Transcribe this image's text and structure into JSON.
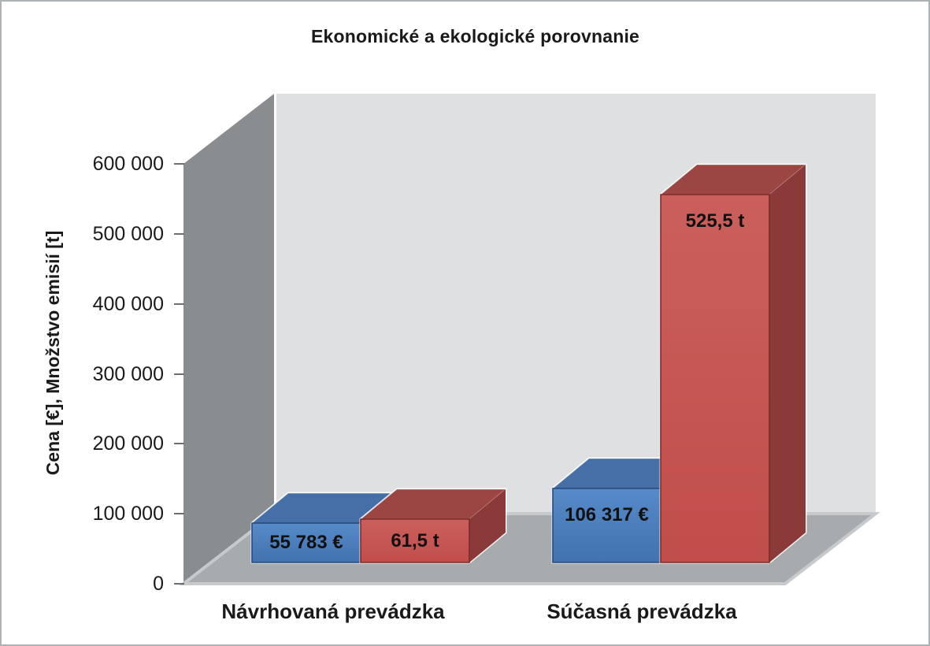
{
  "chart_data": {
    "type": "bar",
    "projection": "3d",
    "title": "Ekonomické a ekologické porovnanie",
    "ylabel": "Cena [€], Množstvo emisií [t]",
    "xlabel": "",
    "ylim": [
      0,
      600000
    ],
    "ytick_step": 100000,
    "ytick_labels": [
      "600 000",
      "500 000",
      "400 000",
      "300 000",
      "200 000",
      "100 000",
      "0"
    ],
    "categories": [
      "Návrhovaná prevádzka",
      "Súčasná prevádzka"
    ],
    "grid": false,
    "legend": false,
    "bars": [
      {
        "category_index": 0,
        "series": "blue",
        "label": "55 783 €",
        "plotted_value": 55783
      },
      {
        "category_index": 0,
        "series": "red",
        "label": "61,5 t",
        "plotted_value": 61500
      },
      {
        "category_index": 1,
        "series": "blue",
        "label": "106 317 €",
        "plotted_value": 106317
      },
      {
        "category_index": 1,
        "series": "red",
        "label": "525,5 t",
        "plotted_value": 525500
      }
    ],
    "colors": {
      "background": "#ffffff",
      "frame_border": "#adb2b4",
      "text": "#1a1a1a",
      "tick_mark": "#6a6e72",
      "wall_left": "#898d90",
      "wall_back": "#dfe0e2",
      "floor": "#a8abae",
      "floor_edge": "#c7cacc",
      "halo": "#ffffff",
      "blue_front_light": "#568ac8",
      "blue_front_dark": "#4272b0",
      "blue_top": "#456fa6",
      "blue_side": "#3a5f92",
      "blue_border": "#27497e",
      "red_front_light": "#cb5f5c",
      "red_front_dark": "#c04e4b",
      "red_top": "#9c4643",
      "red_side": "#8a3a38",
      "red_border": "#7e2b29"
    }
  }
}
